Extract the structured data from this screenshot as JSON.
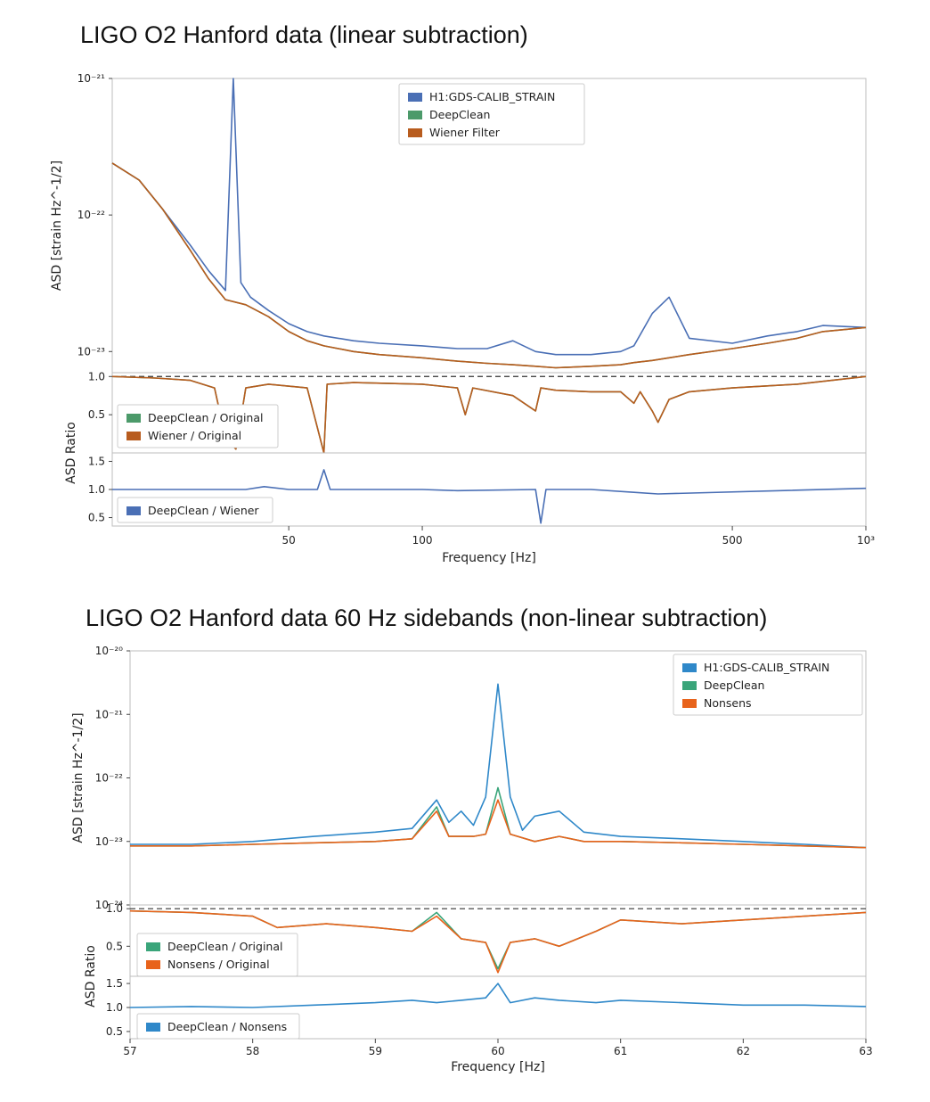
{
  "figures": {
    "top_title": "LIGO O2 Hanford data (linear subtraction)",
    "bottom_title": "LIGO O2 Hanford data 60 Hz sidebands (non-linear subtraction)"
  },
  "colors": {
    "blue_top": "#4a6fb5",
    "green": "#4c9a6a",
    "orange_top": "#b85c1e",
    "blue_bottom": "#2f88c9",
    "orange_bottom": "#e8631b",
    "green_bottom": "#3aa57a"
  },
  "chart_data": [
    {
      "type": "line",
      "panel": "top-main",
      "xscale": "log",
      "yscale": "log",
      "xlim": [
        20,
        1000
      ],
      "ylim": [
        7e-24,
        1e-21
      ],
      "xlabel": "Frequency [Hz]",
      "ylabel": "ASD [strain Hz^-1/2]",
      "ytick_labels": [
        "10⁻²¹",
        "10⁻²²",
        "10⁻²³"
      ],
      "xtick_labels": [
        "50",
        "100",
        "500",
        "10³"
      ],
      "legend": "top-center",
      "series": [
        {
          "name": "H1:GDS-CALIB_STRAIN",
          "color": "#4a6fb5",
          "x": [
            20,
            23,
            26,
            30,
            33,
            36,
            37.5,
            39,
            41,
            45,
            50,
            55,
            60,
            70,
            80,
            100,
            120,
            140,
            160,
            180,
            200,
            240,
            280,
            300,
            330,
            360,
            400,
            500,
            600,
            700,
            800,
            1000
          ],
          "y": [
            2.4e-22,
            1.8e-22,
            1.1e-22,
            6e-23,
            3.9e-23,
            2.8e-23,
            1e-21,
            3.2e-23,
            2.5e-23,
            2e-23,
            1.6e-23,
            1.4e-23,
            1.3e-23,
            1.2e-23,
            1.15e-23,
            1.1e-23,
            1.05e-23,
            1.05e-23,
            1.2e-23,
            1e-23,
            9.5e-24,
            9.5e-24,
            1e-23,
            1.1e-23,
            1.9e-23,
            2.5e-23,
            1.25e-23,
            1.15e-23,
            1.3e-23,
            1.4e-23,
            1.55e-23,
            1.5e-23
          ]
        },
        {
          "name": "DeepClean",
          "color": "#4c9a6a",
          "x": [
            20,
            23,
            26,
            30,
            33,
            36,
            40,
            45,
            50,
            55,
            60,
            70,
            80,
            100,
            120,
            140,
            160,
            180,
            200,
            240,
            280,
            300,
            330,
            360,
            400,
            500,
            600,
            700,
            800,
            1000
          ],
          "y": [
            2.4e-22,
            1.8e-22,
            1.1e-22,
            5.5e-23,
            3.4e-23,
            2.4e-23,
            2.2e-23,
            1.8e-23,
            1.4e-23,
            1.2e-23,
            1.1e-23,
            1e-23,
            9.5e-24,
            9e-24,
            8.5e-24,
            8.2e-24,
            8e-24,
            7.8e-24,
            7.6e-24,
            7.8e-24,
            8e-24,
            8.3e-24,
            8.6e-24,
            9e-24,
            9.5e-24,
            1.05e-23,
            1.15e-23,
            1.25e-23,
            1.4e-23,
            1.5e-23
          ]
        },
        {
          "name": "Wiener Filter",
          "color": "#b85c1e",
          "x": [
            20,
            23,
            26,
            30,
            33,
            36,
            40,
            45,
            50,
            55,
            60,
            70,
            80,
            100,
            120,
            140,
            160,
            180,
            200,
            240,
            280,
            300,
            330,
            360,
            400,
            500,
            600,
            700,
            800,
            1000
          ],
          "y": [
            2.4e-22,
            1.8e-22,
            1.1e-22,
            5.5e-23,
            3.4e-23,
            2.4e-23,
            2.2e-23,
            1.8e-23,
            1.4e-23,
            1.2e-23,
            1.1e-23,
            1e-23,
            9.5e-24,
            9e-24,
            8.5e-24,
            8.2e-24,
            8e-24,
            7.8e-24,
            7.6e-24,
            7.8e-24,
            8e-24,
            8.3e-24,
            8.6e-24,
            9e-24,
            9.5e-24,
            1.05e-23,
            1.15e-23,
            1.25e-23,
            1.4e-23,
            1.5e-23
          ]
        }
      ]
    },
    {
      "type": "line",
      "panel": "top-ratio-1",
      "xscale": "log",
      "xlim": [
        20,
        1000
      ],
      "ylim": [
        0,
        1.05
      ],
      "ylabel": "ASD Ratio",
      "ytick_labels": [
        "1.0",
        "0.5"
      ],
      "reference_line": 1.0,
      "legend": "left",
      "series": [
        {
          "name": "DeepClean / Original",
          "color": "#4c9a6a",
          "x": [
            20,
            25,
            30,
            34,
            36,
            38,
            40,
            45,
            55,
            60,
            61,
            70,
            100,
            120,
            125,
            130,
            160,
            180,
            185,
            200,
            240,
            280,
            300,
            310,
            330,
            340,
            360,
            400,
            500,
            700,
            1000
          ],
          "y": [
            1.0,
            0.98,
            0.95,
            0.85,
            0.2,
            0.05,
            0.85,
            0.9,
            0.85,
            0.0,
            0.9,
            0.92,
            0.9,
            0.85,
            0.5,
            0.85,
            0.75,
            0.55,
            0.85,
            0.82,
            0.8,
            0.8,
            0.65,
            0.8,
            0.55,
            0.4,
            0.7,
            0.8,
            0.85,
            0.9,
            1.0
          ]
        },
        {
          "name": "Wiener / Original",
          "color": "#b85c1e",
          "x": [
            20,
            25,
            30,
            34,
            36,
            38,
            40,
            45,
            55,
            60,
            61,
            70,
            100,
            120,
            125,
            130,
            160,
            180,
            185,
            200,
            240,
            280,
            300,
            310,
            330,
            340,
            360,
            400,
            500,
            700,
            1000
          ],
          "y": [
            1.0,
            0.98,
            0.95,
            0.85,
            0.2,
            0.05,
            0.85,
            0.9,
            0.85,
            0.0,
            0.9,
            0.92,
            0.9,
            0.85,
            0.5,
            0.85,
            0.75,
            0.55,
            0.85,
            0.82,
            0.8,
            0.8,
            0.65,
            0.8,
            0.55,
            0.4,
            0.7,
            0.8,
            0.85,
            0.9,
            1.0
          ]
        }
      ]
    },
    {
      "type": "line",
      "panel": "top-ratio-2",
      "xscale": "log",
      "xlim": [
        20,
        1000
      ],
      "ylim": [
        0.35,
        1.65
      ],
      "ytick_labels": [
        "1.5",
        "1.0",
        "0.5"
      ],
      "xlabel": "Frequency [Hz]",
      "legend": "bottom-left",
      "series": [
        {
          "name": "DeepClean / Wiener",
          "color": "#4a6fb5",
          "x": [
            20,
            40,
            44,
            50,
            58,
            60,
            62,
            100,
            120,
            180,
            185,
            190,
            240,
            300,
            340,
            1000
          ],
          "y": [
            1.0,
            1.0,
            1.05,
            1.0,
            1.0,
            1.35,
            1.0,
            1.0,
            0.98,
            1.0,
            0.4,
            1.0,
            1.0,
            0.95,
            0.92,
            1.02
          ]
        }
      ]
    },
    {
      "type": "line",
      "panel": "bottom-main",
      "yscale": "log",
      "xlim": [
        57,
        63
      ],
      "ylim": [
        1e-24,
        1e-20
      ],
      "ylabel": "ASD [strain Hz^-1/2]",
      "ytick_labels": [
        "10⁻²⁰",
        "10⁻²¹",
        "10⁻²²",
        "10⁻²³",
        "10⁻²⁴"
      ],
      "legend": "top-right",
      "series": [
        {
          "name": "H1:GDS-CALIB_STRAIN",
          "color": "#2f88c9",
          "x": [
            57,
            57.5,
            58,
            58.5,
            59,
            59.3,
            59.5,
            59.6,
            59.7,
            59.8,
            59.9,
            60,
            60.1,
            60.2,
            60.3,
            60.5,
            60.7,
            61,
            61.5,
            62,
            62.5,
            63
          ],
          "y": [
            9e-24,
            9e-24,
            1e-23,
            1.2e-23,
            1.4e-23,
            1.6e-23,
            4.5e-23,
            2e-23,
            3e-23,
            1.8e-23,
            5e-23,
            3e-21,
            5e-23,
            1.5e-23,
            2.5e-23,
            3e-23,
            1.4e-23,
            1.2e-23,
            1.1e-23,
            1e-23,
            9e-24,
            8e-24
          ]
        },
        {
          "name": "DeepClean",
          "color": "#3aa57a",
          "x": [
            57,
            57.5,
            58,
            58.5,
            59,
            59.3,
            59.5,
            59.6,
            59.8,
            59.9,
            60,
            60.1,
            60.3,
            60.5,
            60.7,
            61,
            61.5,
            62,
            62.5,
            63
          ],
          "y": [
            8.5e-24,
            8.5e-24,
            9e-24,
            9.5e-24,
            1e-23,
            1.1e-23,
            3.5e-23,
            1.2e-23,
            1.2e-23,
            1.3e-23,
            7e-23,
            1.3e-23,
            1e-23,
            1.2e-23,
            1e-23,
            1e-23,
            9.5e-24,
            9e-24,
            8.5e-24,
            8e-24
          ]
        },
        {
          "name": "Nonsens",
          "color": "#e8631b",
          "x": [
            57,
            57.5,
            58,
            58.5,
            59,
            59.3,
            59.5,
            59.6,
            59.8,
            59.9,
            60,
            60.1,
            60.3,
            60.5,
            60.7,
            61,
            61.5,
            62,
            62.5,
            63
          ],
          "y": [
            8.5e-24,
            8.5e-24,
            9e-24,
            9.5e-24,
            1e-23,
            1.1e-23,
            3e-23,
            1.2e-23,
            1.2e-23,
            1.3e-23,
            4.5e-23,
            1.3e-23,
            1e-23,
            1.2e-23,
            1e-23,
            1e-23,
            9.5e-24,
            9e-24,
            8.5e-24,
            8e-24
          ]
        }
      ]
    },
    {
      "type": "line",
      "panel": "bottom-ratio-1",
      "xlim": [
        57,
        63
      ],
      "ylim": [
        0.1,
        1.05
      ],
      "ylabel": "ASD Ratio",
      "ytick_labels": [
        "1.0",
        "0.5"
      ],
      "reference_line": 1.0,
      "legend": "bottom-left",
      "series": [
        {
          "name": "DeepClean / Original",
          "color": "#3aa57a",
          "x": [
            57,
            57.5,
            58,
            58.2,
            58.6,
            59,
            59.3,
            59.5,
            59.7,
            59.9,
            60,
            60.1,
            60.3,
            60.5,
            60.8,
            61,
            61.5,
            62,
            62.5,
            63
          ],
          "y": [
            0.97,
            0.95,
            0.9,
            0.75,
            0.8,
            0.75,
            0.7,
            0.95,
            0.6,
            0.55,
            0.2,
            0.55,
            0.6,
            0.5,
            0.7,
            0.85,
            0.8,
            0.85,
            0.9,
            0.95
          ]
        },
        {
          "name": "Nonsens / Original",
          "color": "#e8631b",
          "x": [
            57,
            57.5,
            58,
            58.2,
            58.6,
            59,
            59.3,
            59.5,
            59.7,
            59.9,
            60,
            60.1,
            60.3,
            60.5,
            60.8,
            61,
            61.5,
            62,
            62.5,
            63
          ],
          "y": [
            0.97,
            0.95,
            0.9,
            0.75,
            0.8,
            0.75,
            0.7,
            0.9,
            0.6,
            0.55,
            0.15,
            0.55,
            0.6,
            0.5,
            0.7,
            0.85,
            0.8,
            0.85,
            0.9,
            0.95
          ]
        }
      ]
    },
    {
      "type": "line",
      "panel": "bottom-ratio-2",
      "xlim": [
        57,
        63
      ],
      "ylim": [
        0.35,
        1.65
      ],
      "ytick_labels": [
        "1.5",
        "1.0",
        "0.5"
      ],
      "xlabel": "Frequency [Hz]",
      "xtick_labels": [
        "57",
        "58",
        "59",
        "60",
        "61",
        "62",
        "63"
      ],
      "legend": "bottom-left",
      "series": [
        {
          "name": "DeepClean / Nonsens",
          "color": "#2f88c9",
          "x": [
            57,
            57.5,
            58,
            58.5,
            59,
            59.3,
            59.5,
            59.7,
            59.9,
            60,
            60.1,
            60.3,
            60.5,
            60.8,
            61,
            61.5,
            62,
            62.5,
            63
          ],
          "y": [
            1.0,
            1.02,
            1.0,
            1.05,
            1.1,
            1.15,
            1.1,
            1.15,
            1.2,
            1.5,
            1.1,
            1.2,
            1.15,
            1.1,
            1.15,
            1.1,
            1.05,
            1.05,
            1.02
          ]
        }
      ]
    }
  ]
}
